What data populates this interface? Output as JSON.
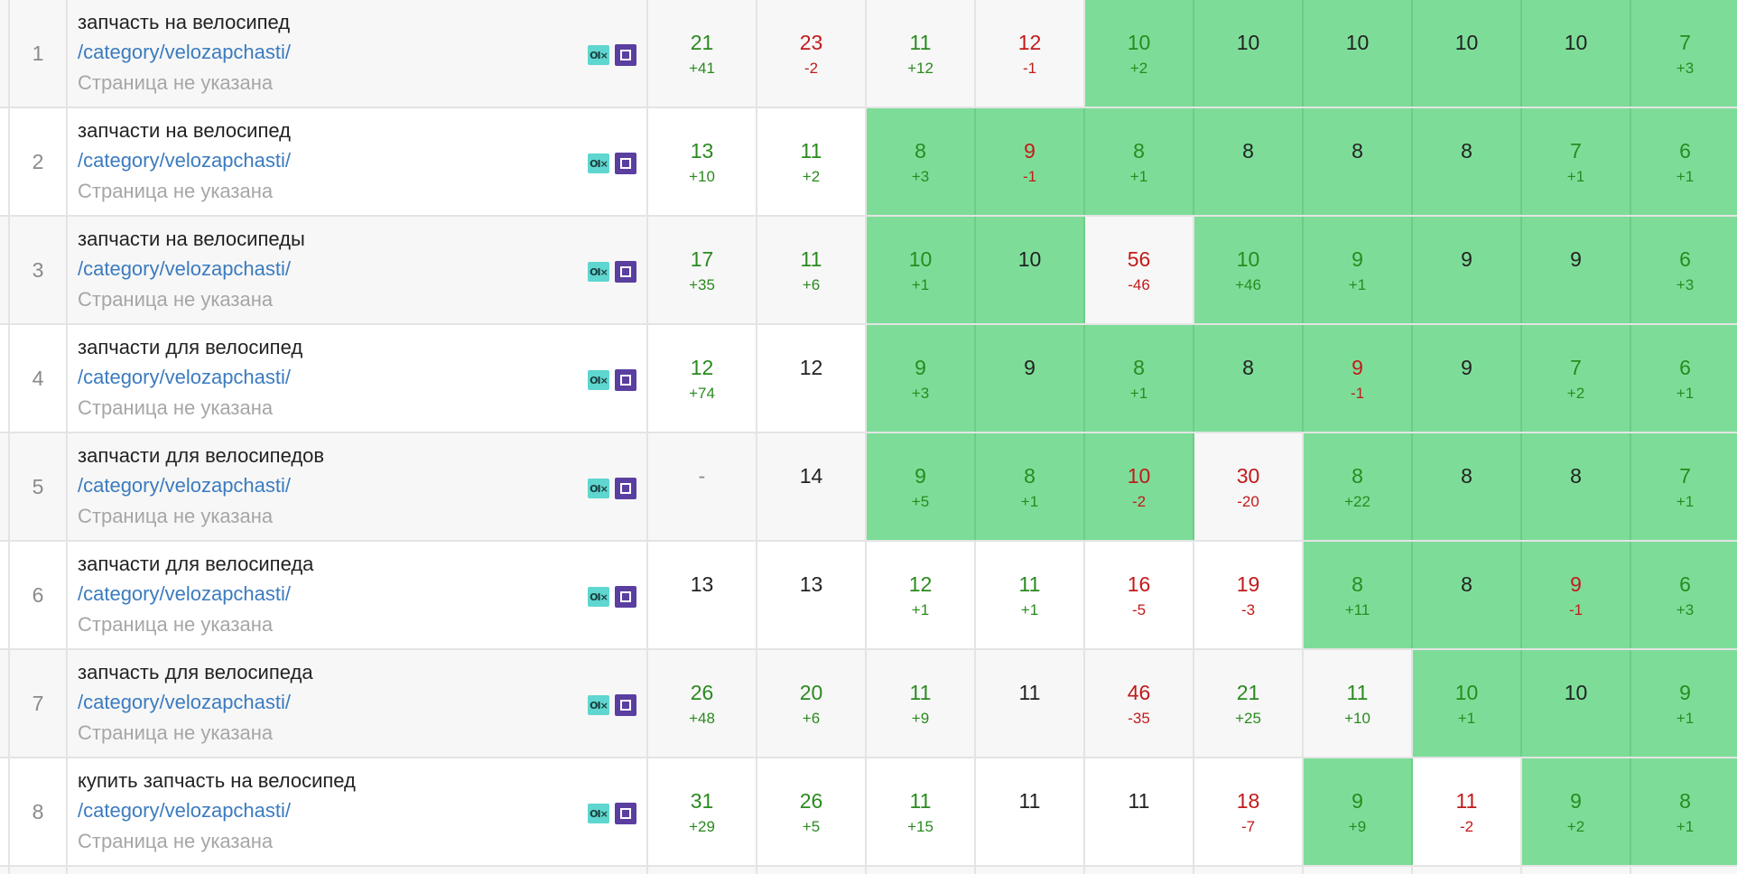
{
  "default_page_label": "Страница не указана",
  "colors": {
    "highlight": "#7ddd98",
    "up": "#2a8a1f",
    "down": "#c21a1a",
    "neutral": "#222222",
    "url": "#3b7bbf",
    "muted": "#a6a6a6"
  },
  "icons": [
    "analytics-badge-icon",
    "square-badge-icon"
  ],
  "rows": [
    {
      "num": "1",
      "keyword": "запчасть на велосипед",
      "url": "/category/velozapchasti/",
      "page_label": "Страница не указана",
      "cells": [
        {
          "value": "21",
          "delta": "+41",
          "color": "green",
          "highlight": false
        },
        {
          "value": "23",
          "delta": "-2",
          "color": "red",
          "highlight": false
        },
        {
          "value": "11",
          "delta": "+12",
          "color": "green",
          "highlight": false
        },
        {
          "value": "12",
          "delta": "-1",
          "color": "red",
          "highlight": false
        },
        {
          "value": "10",
          "delta": "+2",
          "color": "green",
          "highlight": true
        },
        {
          "value": "10",
          "delta": "",
          "color": "black",
          "highlight": true
        },
        {
          "value": "10",
          "delta": "",
          "color": "black",
          "highlight": true
        },
        {
          "value": "10",
          "delta": "",
          "color": "black",
          "highlight": true
        },
        {
          "value": "10",
          "delta": "",
          "color": "black",
          "highlight": true
        },
        {
          "value": "7",
          "delta": "+3",
          "color": "green",
          "highlight": true
        }
      ]
    },
    {
      "num": "2",
      "keyword": "запчасти на велосипед",
      "url": "/category/velozapchasti/",
      "page_label": "Страница не указана",
      "cells": [
        {
          "value": "13",
          "delta": "+10",
          "color": "green",
          "highlight": false
        },
        {
          "value": "11",
          "delta": "+2",
          "color": "green",
          "highlight": false
        },
        {
          "value": "8",
          "delta": "+3",
          "color": "green",
          "highlight": true
        },
        {
          "value": "9",
          "delta": "-1",
          "color": "red",
          "highlight": true
        },
        {
          "value": "8",
          "delta": "+1",
          "color": "green",
          "highlight": true
        },
        {
          "value": "8",
          "delta": "",
          "color": "black",
          "highlight": true
        },
        {
          "value": "8",
          "delta": "",
          "color": "black",
          "highlight": true
        },
        {
          "value": "8",
          "delta": "",
          "color": "black",
          "highlight": true
        },
        {
          "value": "7",
          "delta": "+1",
          "color": "green",
          "highlight": true
        },
        {
          "value": "6",
          "delta": "+1",
          "color": "green",
          "highlight": true
        }
      ]
    },
    {
      "num": "3",
      "keyword": "запчасти на велосипеды",
      "url": "/category/velozapchasti/",
      "page_label": "Страница не указана",
      "cells": [
        {
          "value": "17",
          "delta": "+35",
          "color": "green",
          "highlight": false
        },
        {
          "value": "11",
          "delta": "+6",
          "color": "green",
          "highlight": false
        },
        {
          "value": "10",
          "delta": "+1",
          "color": "green",
          "highlight": true
        },
        {
          "value": "10",
          "delta": "",
          "color": "black",
          "highlight": true
        },
        {
          "value": "56",
          "delta": "-46",
          "color": "red",
          "highlight": false
        },
        {
          "value": "10",
          "delta": "+46",
          "color": "green",
          "highlight": true
        },
        {
          "value": "9",
          "delta": "+1",
          "color": "green",
          "highlight": true
        },
        {
          "value": "9",
          "delta": "",
          "color": "black",
          "highlight": true
        },
        {
          "value": "9",
          "delta": "",
          "color": "black",
          "highlight": true
        },
        {
          "value": "6",
          "delta": "+3",
          "color": "green",
          "highlight": true
        }
      ]
    },
    {
      "num": "4",
      "keyword": "запчасти для велосипед",
      "url": "/category/velozapchasti/",
      "page_label": "Страница не указана",
      "cells": [
        {
          "value": "12",
          "delta": "+74",
          "color": "green",
          "highlight": false
        },
        {
          "value": "12",
          "delta": "",
          "color": "black",
          "highlight": false
        },
        {
          "value": "9",
          "delta": "+3",
          "color": "green",
          "highlight": true
        },
        {
          "value": "9",
          "delta": "",
          "color": "black",
          "highlight": true
        },
        {
          "value": "8",
          "delta": "+1",
          "color": "green",
          "highlight": true
        },
        {
          "value": "8",
          "delta": "",
          "color": "black",
          "highlight": true
        },
        {
          "value": "9",
          "delta": "-1",
          "color": "red",
          "highlight": true
        },
        {
          "value": "9",
          "delta": "",
          "color": "black",
          "highlight": true
        },
        {
          "value": "7",
          "delta": "+2",
          "color": "green",
          "highlight": true
        },
        {
          "value": "6",
          "delta": "+1",
          "color": "green",
          "highlight": true
        }
      ]
    },
    {
      "num": "5",
      "keyword": "запчасти для велосипедов",
      "url": "/category/velozapchasti/",
      "page_label": "Страница не указана",
      "cells": [
        {
          "value": "-",
          "delta": "",
          "color": "gray",
          "highlight": false
        },
        {
          "value": "14",
          "delta": "",
          "color": "black",
          "highlight": false
        },
        {
          "value": "9",
          "delta": "+5",
          "color": "green",
          "highlight": true
        },
        {
          "value": "8",
          "delta": "+1",
          "color": "green",
          "highlight": true
        },
        {
          "value": "10",
          "delta": "-2",
          "color": "red",
          "highlight": true
        },
        {
          "value": "30",
          "delta": "-20",
          "color": "red",
          "highlight": false
        },
        {
          "value": "8",
          "delta": "+22",
          "color": "green",
          "highlight": true
        },
        {
          "value": "8",
          "delta": "",
          "color": "black",
          "highlight": true
        },
        {
          "value": "8",
          "delta": "",
          "color": "black",
          "highlight": true
        },
        {
          "value": "7",
          "delta": "+1",
          "color": "green",
          "highlight": true
        }
      ]
    },
    {
      "num": "6",
      "keyword": "запчасти для велосипеда",
      "url": "/category/velozapchasti/",
      "page_label": "Страница не указана",
      "cells": [
        {
          "value": "13",
          "delta": "",
          "color": "black",
          "highlight": false
        },
        {
          "value": "13",
          "delta": "",
          "color": "black",
          "highlight": false
        },
        {
          "value": "12",
          "delta": "+1",
          "color": "green",
          "highlight": false
        },
        {
          "value": "11",
          "delta": "+1",
          "color": "green",
          "highlight": false
        },
        {
          "value": "16",
          "delta": "-5",
          "color": "red",
          "highlight": false
        },
        {
          "value": "19",
          "delta": "-3",
          "color": "red",
          "highlight": false
        },
        {
          "value": "8",
          "delta": "+11",
          "color": "green",
          "highlight": true
        },
        {
          "value": "8",
          "delta": "",
          "color": "black",
          "highlight": true
        },
        {
          "value": "9",
          "delta": "-1",
          "color": "red",
          "highlight": true
        },
        {
          "value": "6",
          "delta": "+3",
          "color": "green",
          "highlight": true
        }
      ]
    },
    {
      "num": "7",
      "keyword": "запчасть для велосипеда",
      "url": "/category/velozapchasti/",
      "page_label": "Страница не указана",
      "cells": [
        {
          "value": "26",
          "delta": "+48",
          "color": "green",
          "highlight": false
        },
        {
          "value": "20",
          "delta": "+6",
          "color": "green",
          "highlight": false
        },
        {
          "value": "11",
          "delta": "+9",
          "color": "green",
          "highlight": false
        },
        {
          "value": "11",
          "delta": "",
          "color": "black",
          "highlight": false
        },
        {
          "value": "46",
          "delta": "-35",
          "color": "red",
          "highlight": false
        },
        {
          "value": "21",
          "delta": "+25",
          "color": "green",
          "highlight": false
        },
        {
          "value": "11",
          "delta": "+10",
          "color": "green",
          "highlight": false
        },
        {
          "value": "10",
          "delta": "+1",
          "color": "green",
          "highlight": true
        },
        {
          "value": "10",
          "delta": "",
          "color": "black",
          "highlight": true
        },
        {
          "value": "9",
          "delta": "+1",
          "color": "green",
          "highlight": true
        }
      ]
    },
    {
      "num": "8",
      "keyword": "купить запчасть на велосипед",
      "url": "/category/velozapchasti/",
      "page_label": "Страница не указана",
      "cells": [
        {
          "value": "31",
          "delta": "+29",
          "color": "green",
          "highlight": false
        },
        {
          "value": "26",
          "delta": "+5",
          "color": "green",
          "highlight": false
        },
        {
          "value": "11",
          "delta": "+15",
          "color": "green",
          "highlight": false
        },
        {
          "value": "11",
          "delta": "",
          "color": "black",
          "highlight": false
        },
        {
          "value": "11",
          "delta": "",
          "color": "black",
          "highlight": false
        },
        {
          "value": "18",
          "delta": "-7",
          "color": "red",
          "highlight": false
        },
        {
          "value": "9",
          "delta": "+9",
          "color": "green",
          "highlight": true
        },
        {
          "value": "11",
          "delta": "-2",
          "color": "red",
          "highlight": false
        },
        {
          "value": "9",
          "delta": "+2",
          "color": "green",
          "highlight": true
        },
        {
          "value": "8",
          "delta": "+1",
          "color": "green",
          "highlight": true
        }
      ]
    }
  ]
}
